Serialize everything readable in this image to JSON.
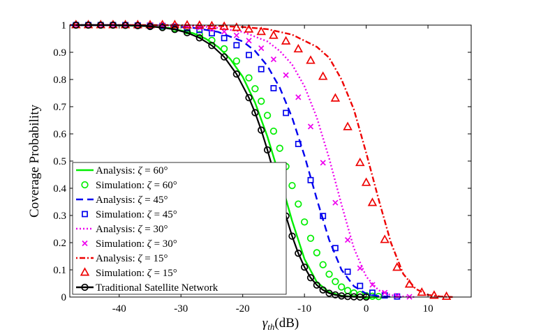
{
  "chart_data": {
    "type": "line",
    "xlabel_main": "γ",
    "xlabel_sub": "th",
    "xlabel_rest": "(dB)",
    "ylabel": "Coverage Probability",
    "xlim": [
      -48,
      17
    ],
    "ylim": [
      0,
      1
    ],
    "xticks": [
      -40,
      -30,
      -20,
      -10,
      0,
      10
    ],
    "xtick_labels": [
      "-40",
      "-30",
      "-20",
      "-10",
      "0",
      "10"
    ],
    "yticks": [
      0,
      0.1,
      0.2,
      0.3,
      0.4,
      0.5,
      0.6,
      0.7,
      0.8,
      0.9,
      1
    ],
    "ytick_labels": [
      "0",
      "0.1",
      "0.2",
      "0.3",
      "0.4",
      "0.5",
      "0.6",
      "0.7",
      "0.8",
      "0.9",
      "1"
    ],
    "legend_position": "bottom-left",
    "series": [
      {
        "name": "Analysis: ζ = 60°",
        "kind": "analysis",
        "style": "solid",
        "color": "#00ee00",
        "x": [
          -48,
          -44,
          -40,
          -36,
          -32,
          -28,
          -26,
          -24,
          -22,
          -20,
          -18,
          -16,
          -14,
          -12,
          -10,
          -8,
          -6,
          -4,
          -2,
          0,
          2
        ],
        "values": [
          1.0,
          1.0,
          0.999,
          0.997,
          0.99,
          0.97,
          0.95,
          0.92,
          0.875,
          0.81,
          0.715,
          0.59,
          0.44,
          0.28,
          0.14,
          0.055,
          0.018,
          0.005,
          0.001,
          0,
          0
        ]
      },
      {
        "name": "Simulation: ζ = 60°",
        "kind": "simulation",
        "marker": "circle",
        "color": "#00ee00",
        "x": [
          -47,
          -45,
          -43,
          -41,
          -39,
          -37,
          -35,
          -33,
          -31,
          -29,
          -27,
          -25,
          -23,
          -21,
          -19,
          -18,
          -17,
          -16,
          -15,
          -14,
          -13,
          -12,
          -11,
          -10,
          -9,
          -8,
          -7,
          -6,
          -5,
          -4,
          -3,
          -2,
          -1,
          0,
          1,
          2
        ],
        "values": [
          1,
          1,
          1,
          1,
          0.999,
          0.998,
          0.996,
          0.993,
          0.988,
          0.979,
          0.965,
          0.944,
          0.913,
          0.868,
          0.806,
          0.766,
          0.72,
          0.668,
          0.61,
          0.547,
          0.48,
          0.41,
          0.342,
          0.276,
          0.216,
          0.163,
          0.119,
          0.084,
          0.057,
          0.037,
          0.024,
          0.015,
          0.009,
          0.005,
          0.003,
          0.002
        ]
      },
      {
        "name": "Analysis: ζ = 45°",
        "kind": "analysis",
        "style": "dashed",
        "color": "#0000ee",
        "x": [
          -48,
          -44,
          -40,
          -36,
          -32,
          -28,
          -24,
          -20,
          -18,
          -16,
          -14,
          -12,
          -10,
          -8,
          -6,
          -4,
          -2,
          0,
          2,
          4,
          6
        ],
        "values": [
          1.0,
          1.0,
          1.0,
          0.999,
          0.997,
          0.99,
          0.975,
          0.94,
          0.905,
          0.85,
          0.77,
          0.66,
          0.52,
          0.36,
          0.21,
          0.1,
          0.04,
          0.012,
          0.003,
          0.001,
          0
        ]
      },
      {
        "name": "Simulation: ζ = 45°",
        "kind": "simulation",
        "marker": "square",
        "color": "#0000ee",
        "x": [
          -47,
          -45,
          -43,
          -41,
          -39,
          -37,
          -35,
          -33,
          -31,
          -29,
          -27,
          -25,
          -23,
          -21,
          -19,
          -17,
          -15,
          -13,
          -11,
          -9,
          -7,
          -5,
          -3,
          -1,
          1,
          3,
          5
        ],
        "values": [
          1,
          1,
          1,
          1,
          1,
          0.999,
          0.998,
          0.997,
          0.994,
          0.989,
          0.982,
          0.97,
          0.952,
          0.926,
          0.89,
          0.838,
          0.768,
          0.677,
          0.563,
          0.43,
          0.298,
          0.18,
          0.093,
          0.041,
          0.016,
          0.006,
          0.002
        ]
      },
      {
        "name": "Analysis: ζ = 30°",
        "kind": "analysis",
        "style": "dotted",
        "color": "#ee00ee",
        "x": [
          -48,
          -44,
          -40,
          -36,
          -32,
          -28,
          -24,
          -20,
          -16,
          -14,
          -12,
          -10,
          -8,
          -6,
          -4,
          -2,
          0,
          2,
          4,
          6,
          8
        ],
        "values": [
          1.0,
          1.0,
          1.0,
          1.0,
          0.999,
          0.997,
          0.99,
          0.975,
          0.94,
          0.905,
          0.855,
          0.775,
          0.66,
          0.51,
          0.34,
          0.18,
          0.075,
          0.025,
          0.007,
          0.002,
          0
        ]
      },
      {
        "name": "Simulation: ζ = 30°",
        "kind": "simulation",
        "marker": "x",
        "color": "#ee00ee",
        "x": [
          -47,
          -45,
          -43,
          -41,
          -39,
          -37,
          -35,
          -33,
          -31,
          -29,
          -27,
          -25,
          -23,
          -21,
          -19,
          -17,
          -15,
          -13,
          -11,
          -9,
          -7,
          -5,
          -3,
          -1,
          1,
          3,
          5,
          7
        ],
        "values": [
          1,
          1,
          1,
          1,
          1,
          1,
          0.999,
          0.998,
          0.997,
          0.995,
          0.991,
          0.985,
          0.976,
          0.962,
          0.943,
          0.915,
          0.874,
          0.816,
          0.735,
          0.627,
          0.494,
          0.347,
          0.21,
          0.106,
          0.045,
          0.016,
          0.005,
          0.001
        ]
      },
      {
        "name": "Analysis: ζ = 15°",
        "kind": "analysis",
        "style": "dashdot",
        "color": "#ee0000",
        "x": [
          -48,
          -44,
          -40,
          -36,
          -32,
          -28,
          -24,
          -20,
          -16,
          -12,
          -8,
          -6,
          -4,
          -2,
          0,
          2,
          4,
          6,
          8,
          10,
          12,
          14
        ],
        "values": [
          1.0,
          1.0,
          1.0,
          1.0,
          1.0,
          0.999,
          0.997,
          0.993,
          0.985,
          0.965,
          0.92,
          0.88,
          0.8,
          0.69,
          0.53,
          0.36,
          0.2,
          0.085,
          0.03,
          0.008,
          0.002,
          0
        ]
      },
      {
        "name": "Simulation: ζ = 15°",
        "kind": "simulation",
        "marker": "triangle",
        "color": "#ee0000",
        "x": [
          -47,
          -45,
          -43,
          -41,
          -39,
          -37,
          -35,
          -33,
          -31,
          -29,
          -27,
          -25,
          -23,
          -21,
          -19,
          -17,
          -15,
          -13,
          -11,
          -9,
          -7,
          -5,
          -3,
          -1,
          0,
          1,
          3,
          5,
          7,
          9,
          11,
          13
        ],
        "values": [
          1,
          1,
          1,
          1,
          1,
          1,
          1,
          1,
          1,
          0.999,
          0.998,
          0.996,
          0.994,
          0.99,
          0.984,
          0.975,
          0.961,
          0.94,
          0.911,
          0.869,
          0.81,
          0.73,
          0.625,
          0.493,
          0.42,
          0.346,
          0.21,
          0.108,
          0.046,
          0.016,
          0.005,
          0.001
        ]
      },
      {
        "name": "Traditional Satellite Network",
        "kind": "combined",
        "style": "solid",
        "marker": "circle",
        "color": "#000000",
        "x": [
          -47,
          -45,
          -43,
          -41,
          -39,
          -37,
          -35,
          -33,
          -31,
          -29,
          -27,
          -25,
          -23,
          -21,
          -19,
          -18,
          -17,
          -16,
          -15,
          -14,
          -13,
          -12,
          -11,
          -10,
          -9,
          -8,
          -7,
          -6,
          -5,
          -4,
          -3,
          -2,
          -1,
          0
        ],
        "values": [
          1,
          1,
          1,
          1,
          0.999,
          0.998,
          0.995,
          0.991,
          0.984,
          0.972,
          0.953,
          0.925,
          0.883,
          0.82,
          0.733,
          0.678,
          0.614,
          0.541,
          0.461,
          0.378,
          0.298,
          0.224,
          0.161,
          0.11,
          0.071,
          0.044,
          0.026,
          0.014,
          0.008,
          0.004,
          0.002,
          0.001,
          0,
          0
        ]
      }
    ]
  }
}
